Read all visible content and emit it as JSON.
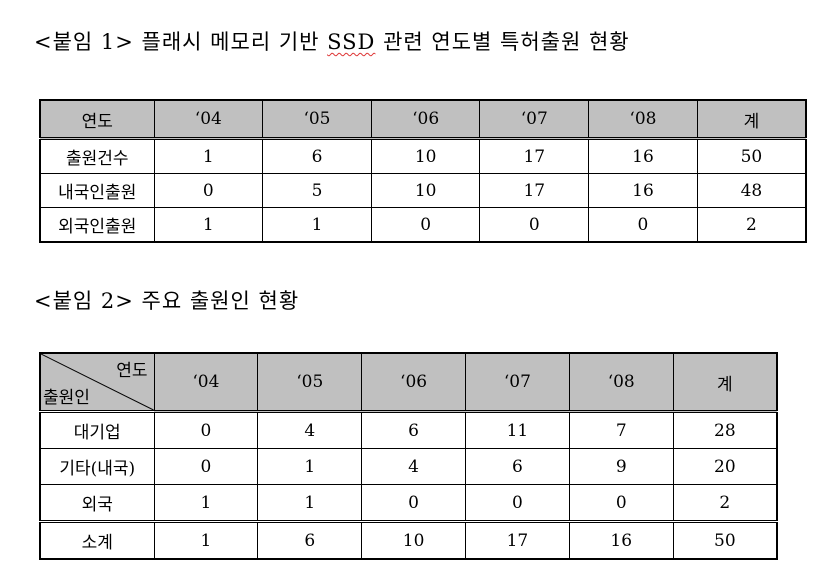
{
  "table1": {
    "title_prefix": "<붙임 1> 플래시 메모리 기반 ",
    "title_ssd": "SSD",
    "title_suffix": " 관련 연도별 특허출원 현황",
    "headers": [
      "연도",
      "‘04",
      "‘05",
      "‘06",
      "‘07",
      "‘08",
      "계"
    ],
    "rows": [
      [
        "출원건수",
        "1",
        "6",
        "10",
        "17",
        "16",
        "50"
      ],
      [
        "내국인출원",
        "0",
        "5",
        "10",
        "17",
        "16",
        "48"
      ],
      [
        "외국인출원",
        "1",
        "1",
        "0",
        "0",
        "0",
        "2"
      ]
    ]
  },
  "table2": {
    "title": "<붙임 2> 주요 출원인 현황",
    "corner_top": "연도",
    "corner_bottom": "출원인",
    "headers": [
      "‘04",
      "‘05",
      "‘06",
      "‘07",
      "‘08",
      "계"
    ],
    "rows": [
      [
        "대기업",
        "0",
        "4",
        "6",
        "11",
        "7",
        "28"
      ],
      [
        "기타(내국)",
        "0",
        "1",
        "4",
        "6",
        "9",
        "20"
      ],
      [
        "외국",
        "1",
        "1",
        "0",
        "0",
        "0",
        "2"
      ],
      [
        "소계",
        "1",
        "6",
        "10",
        "17",
        "16",
        "50"
      ]
    ]
  }
}
